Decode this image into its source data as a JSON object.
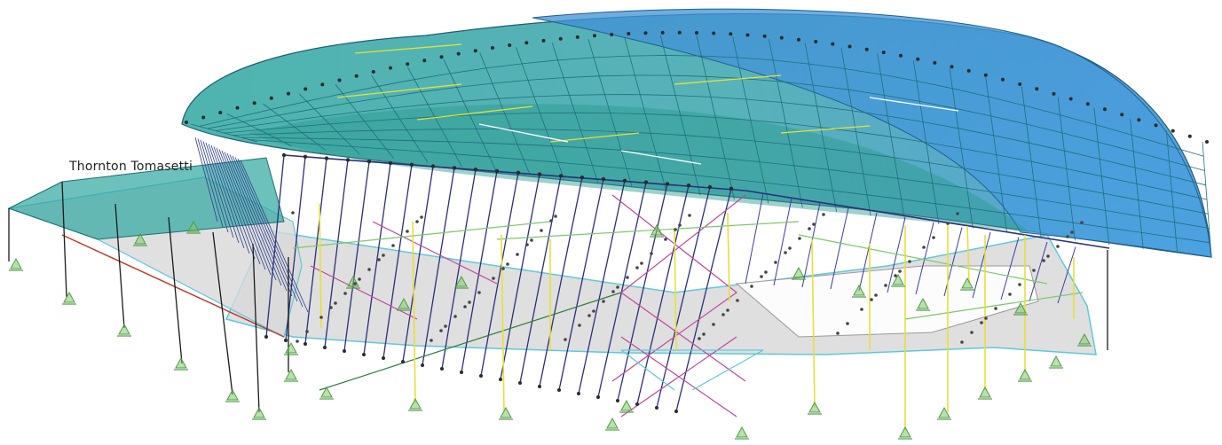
{
  "credit": {
    "text": "Thornton Tomasetti"
  },
  "palette": {
    "roof_teal": "#2fa7a0",
    "roof_blue": "#3a8fd8",
    "frame_navy": "#2c2f7a",
    "member_teal": "#1f7f8c",
    "column_yellow": "#e6e03a",
    "brace_magenta": "#c0479a",
    "slab_gray": "#d8d8d8",
    "edge_cyan": "#5fc9d8",
    "support_green": "#7fc76a",
    "node_dark": "#2b2b2b",
    "edge_red": "#c0392b"
  },
  "icons": {
    "support": "pin-support-icon",
    "node": "node-dot-icon"
  }
}
